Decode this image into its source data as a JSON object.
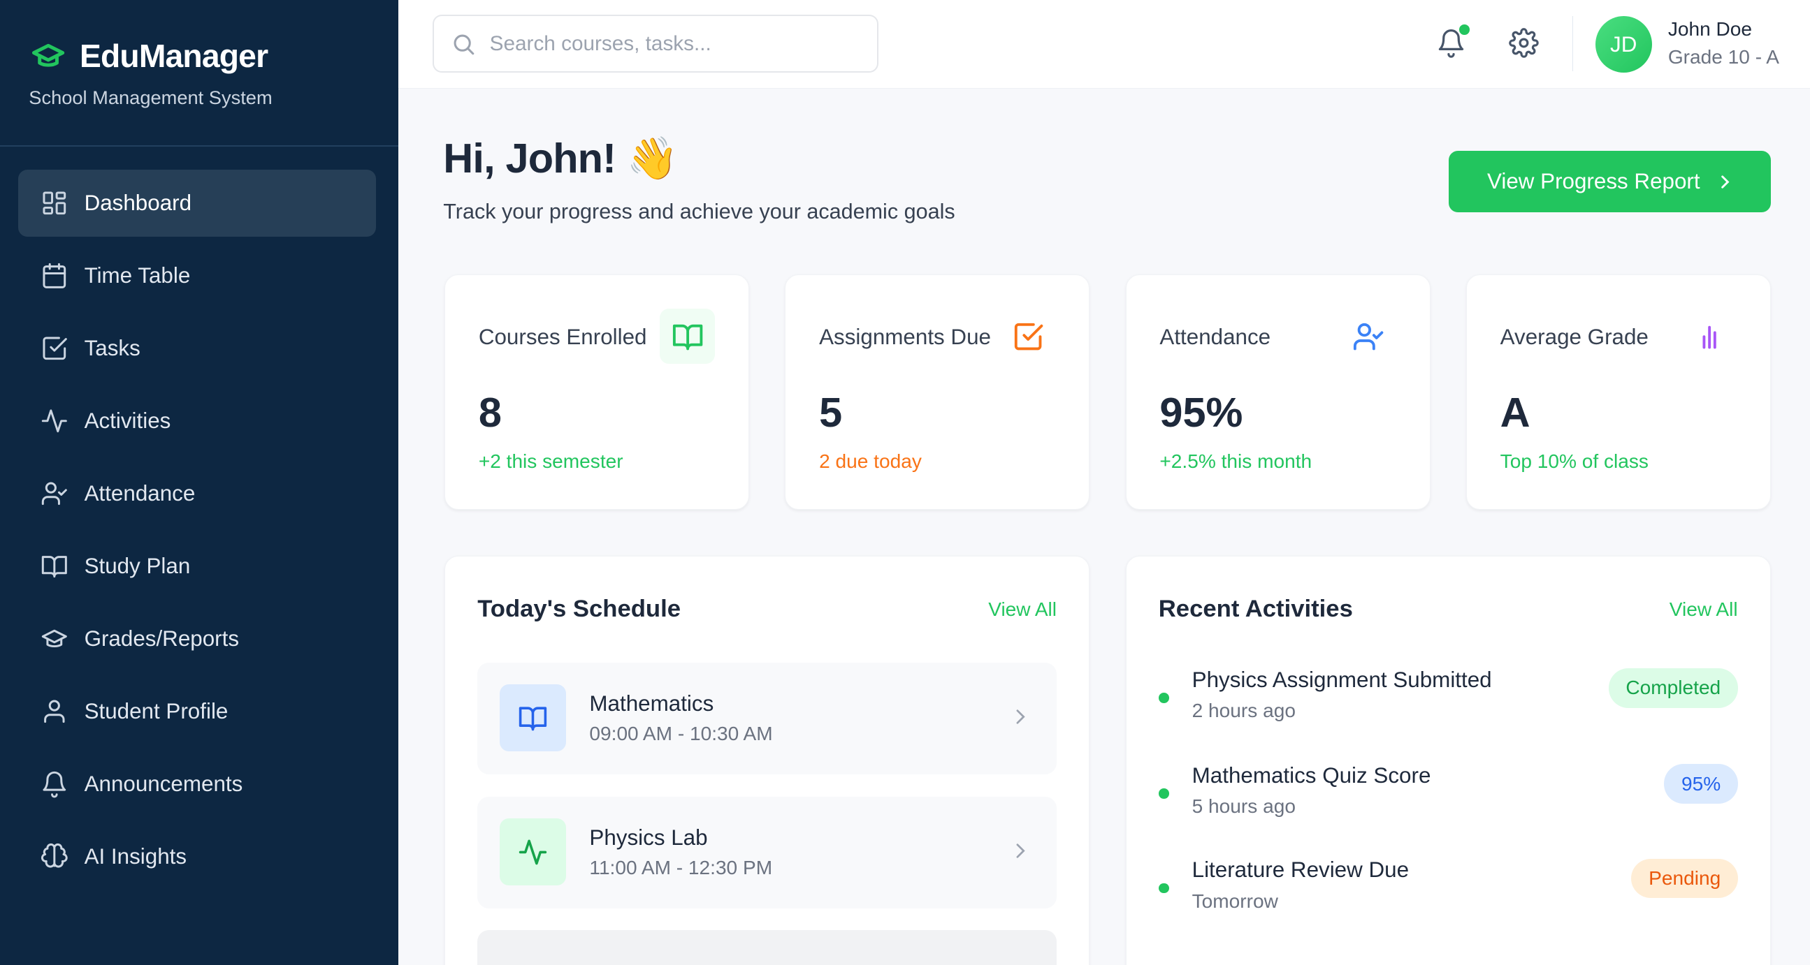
{
  "app": {
    "name": "EduManager",
    "subtitle": "School Management System",
    "accent": "#22c55e",
    "sidebar_bg": "#0d2742"
  },
  "sidebar": {
    "items": [
      {
        "label": "Dashboard",
        "icon": "dashboard-icon",
        "active": true
      },
      {
        "label": "Time Table",
        "icon": "calendar-icon"
      },
      {
        "label": "Tasks",
        "icon": "checkbox-icon"
      },
      {
        "label": "Activities",
        "icon": "activity-icon"
      },
      {
        "label": "Attendance",
        "icon": "user-check-icon"
      },
      {
        "label": "Study Plan",
        "icon": "book-icon"
      },
      {
        "label": "Grades/Reports",
        "icon": "graduation-cap-icon"
      },
      {
        "label": "Student Profile",
        "icon": "user-icon"
      },
      {
        "label": "Announcements",
        "icon": "bell-icon"
      },
      {
        "label": "AI Insights",
        "icon": "brain-icon"
      }
    ]
  },
  "header": {
    "search_placeholder": "Search courses, tasks...",
    "user": {
      "initials": "JD",
      "name": "John Doe",
      "grade": "Grade 10 - A"
    }
  },
  "main": {
    "greeting": "Hi, John! 👋",
    "subtitle": "Track your progress and achieve your academic goals",
    "report_button": "View Progress Report",
    "stats": [
      {
        "label": "Courses Enrolled",
        "value": "8",
        "note": "+2 this semester",
        "note_color": "#22c55e",
        "icon": "book-open-icon"
      },
      {
        "label": "Assignments Due",
        "value": "5",
        "note": "2 due today",
        "note_color": "#f97316",
        "icon": "checkbox-icon"
      },
      {
        "label": "Attendance",
        "value": "95%",
        "note": "+2.5% this month",
        "note_color": "#22c55e",
        "icon": "user-check-icon"
      },
      {
        "label": "Average Grade",
        "value": "A",
        "note": "Top 10% of class",
        "note_color": "#22c55e",
        "icon": "bar-chart-icon"
      }
    ],
    "schedule": {
      "title": "Today's Schedule",
      "view_all": "View All",
      "items": [
        {
          "subject": "Mathematics",
          "time": "09:00 AM - 10:30 AM",
          "icon": "book-open-icon"
        },
        {
          "subject": "Physics Lab",
          "time": "11:00 AM - 12:30 PM",
          "icon": "activity-icon"
        }
      ]
    },
    "activities": {
      "title": "Recent Activities",
      "view_all": "View All",
      "items": [
        {
          "title": "Physics Assignment Submitted",
          "when": "2 hours ago",
          "badge": "Completed"
        },
        {
          "title": "Mathematics Quiz Score",
          "when": "5 hours ago",
          "badge": "95%"
        },
        {
          "title": "Literature Review Due",
          "when": "Tomorrow",
          "badge": "Pending"
        }
      ]
    }
  }
}
